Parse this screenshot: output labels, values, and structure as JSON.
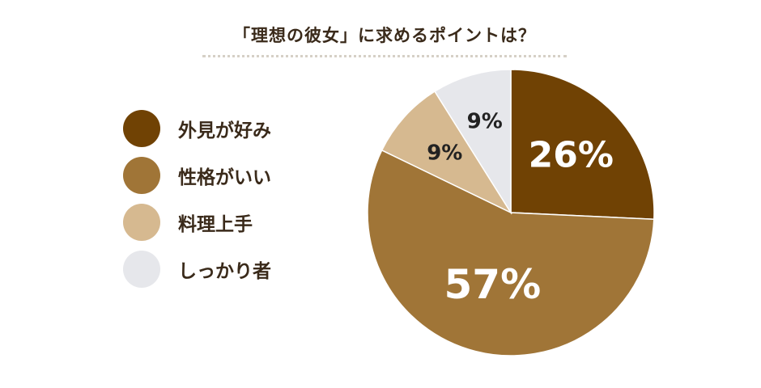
{
  "title": "「理想の彼女」に求めるポイントは？",
  "colors": {
    "text": "#3a2a1a",
    "underline": "#d6d0c6"
  },
  "chart_data": {
    "type": "pie",
    "title": "「理想の彼女」に求めるポイントは？",
    "slices": [
      {
        "label": "外見が好み",
        "value": 26,
        "value_label": "26%",
        "color": "#704204",
        "label_color": "#ffffff"
      },
      {
        "label": "性格がいい",
        "value": 57,
        "value_label": "57%",
        "color": "#a07537",
        "label_color": "#ffffff"
      },
      {
        "label": "料理上手",
        "value": 9,
        "value_label": "9%",
        "color": "#d6b990",
        "label_color": "#222222"
      },
      {
        "label": "しっかり者",
        "value": 9,
        "value_label": "9%",
        "color": "#e6e7eb",
        "label_color": "#222222"
      }
    ],
    "start": "12 o'clock",
    "direction": "clockwise",
    "legend_position": "left"
  }
}
